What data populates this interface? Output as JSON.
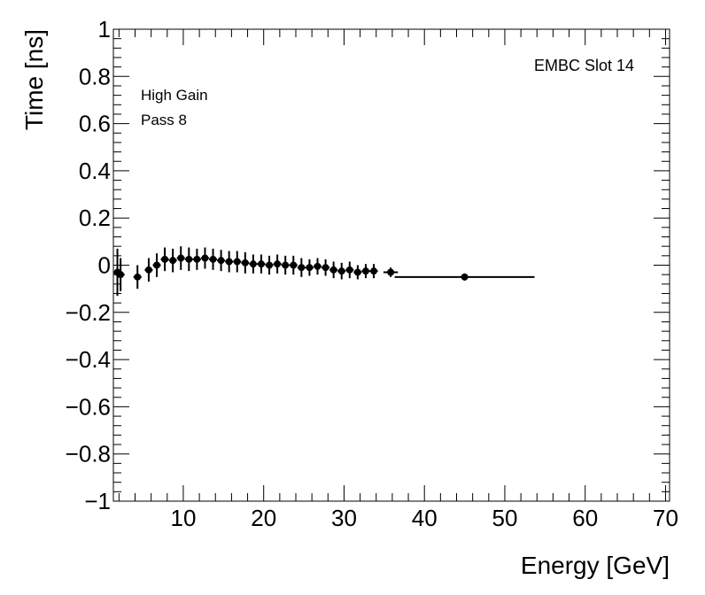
{
  "chart_data": {
    "type": "scatter",
    "title": "",
    "xlabel": "Energy [GeV]",
    "ylabel": "Time [ns]",
    "xlim": [
      1.3,
      70.5
    ],
    "ylim": [
      -1,
      1
    ],
    "x_ticks": [
      10,
      20,
      30,
      40,
      50,
      60,
      70
    ],
    "x_tick_labels": [
      "10",
      "20",
      "30",
      "40",
      "50",
      "60",
      "70"
    ],
    "y_ticks": [
      -1,
      -0.8,
      -0.6,
      -0.4,
      -0.2,
      0,
      0.2,
      0.4,
      0.6,
      0.8,
      1
    ],
    "y_tick_labels": [
      "−1",
      "−0.8",
      "−0.6",
      "−0.4",
      "−0.2",
      "0",
      "0.2",
      "0.4",
      "0.6",
      "0.8",
      "1"
    ],
    "annotations": {
      "top_right": "EMBC Slot 14",
      "line1": "High Gain",
      "line2": "Pass 8"
    },
    "grid": false,
    "color": "#000000",
    "points": [
      {
        "x": 1.8,
        "y": -0.03,
        "xerr": 0.5,
        "yerr": 0.1
      },
      {
        "x": 2.2,
        "y": -0.04,
        "xerr": 0.5,
        "yerr": 0.07
      },
      {
        "x": 4.3,
        "y": -0.05,
        "xerr": 0.5,
        "yerr": 0.05
      },
      {
        "x": 5.7,
        "y": -0.02,
        "xerr": 0.5,
        "yerr": 0.05
      },
      {
        "x": 6.7,
        "y": 0.0,
        "xerr": 0.5,
        "yerr": 0.05
      },
      {
        "x": 7.7,
        "y": 0.025,
        "xerr": 0.5,
        "yerr": 0.05
      },
      {
        "x": 8.7,
        "y": 0.02,
        "xerr": 0.5,
        "yerr": 0.05
      },
      {
        "x": 9.7,
        "y": 0.03,
        "xerr": 0.5,
        "yerr": 0.05
      },
      {
        "x": 10.7,
        "y": 0.025,
        "xerr": 0.5,
        "yerr": 0.05
      },
      {
        "x": 11.7,
        "y": 0.025,
        "xerr": 0.5,
        "yerr": 0.045
      },
      {
        "x": 12.7,
        "y": 0.03,
        "xerr": 0.5,
        "yerr": 0.045
      },
      {
        "x": 13.7,
        "y": 0.025,
        "xerr": 0.5,
        "yerr": 0.045
      },
      {
        "x": 14.7,
        "y": 0.02,
        "xerr": 0.5,
        "yerr": 0.045
      },
      {
        "x": 15.7,
        "y": 0.015,
        "xerr": 0.5,
        "yerr": 0.045
      },
      {
        "x": 16.7,
        "y": 0.015,
        "xerr": 0.5,
        "yerr": 0.045
      },
      {
        "x": 17.7,
        "y": 0.01,
        "xerr": 0.5,
        "yerr": 0.045
      },
      {
        "x": 18.7,
        "y": 0.005,
        "xerr": 0.5,
        "yerr": 0.04
      },
      {
        "x": 19.7,
        "y": 0.005,
        "xerr": 0.5,
        "yerr": 0.04
      },
      {
        "x": 20.7,
        "y": 0.0,
        "xerr": 0.5,
        "yerr": 0.04
      },
      {
        "x": 21.7,
        "y": 0.005,
        "xerr": 0.5,
        "yerr": 0.04
      },
      {
        "x": 22.7,
        "y": 0.0,
        "xerr": 0.5,
        "yerr": 0.04
      },
      {
        "x": 23.7,
        "y": 0.0,
        "xerr": 0.5,
        "yerr": 0.04
      },
      {
        "x": 24.7,
        "y": -0.01,
        "xerr": 0.5,
        "yerr": 0.04
      },
      {
        "x": 25.7,
        "y": -0.01,
        "xerr": 0.5,
        "yerr": 0.035
      },
      {
        "x": 26.7,
        "y": -0.005,
        "xerr": 0.5,
        "yerr": 0.035
      },
      {
        "x": 27.7,
        "y": -0.01,
        "xerr": 0.5,
        "yerr": 0.035
      },
      {
        "x": 28.7,
        "y": -0.02,
        "xerr": 0.5,
        "yerr": 0.035
      },
      {
        "x": 29.7,
        "y": -0.025,
        "xerr": 0.5,
        "yerr": 0.035
      },
      {
        "x": 30.7,
        "y": -0.02,
        "xerr": 0.5,
        "yerr": 0.035
      },
      {
        "x": 31.7,
        "y": -0.03,
        "xerr": 0.5,
        "yerr": 0.03
      },
      {
        "x": 32.7,
        "y": -0.025,
        "xerr": 0.5,
        "yerr": 0.03
      },
      {
        "x": 33.7,
        "y": -0.025,
        "xerr": 0.5,
        "yerr": 0.03
      },
      {
        "x": 35.8,
        "y": -0.03,
        "xerr": 0.9,
        "yerr": 0.02
      },
      {
        "x": 45.0,
        "y": -0.05,
        "xerr": 8.7,
        "yerr": 0.015
      }
    ]
  }
}
